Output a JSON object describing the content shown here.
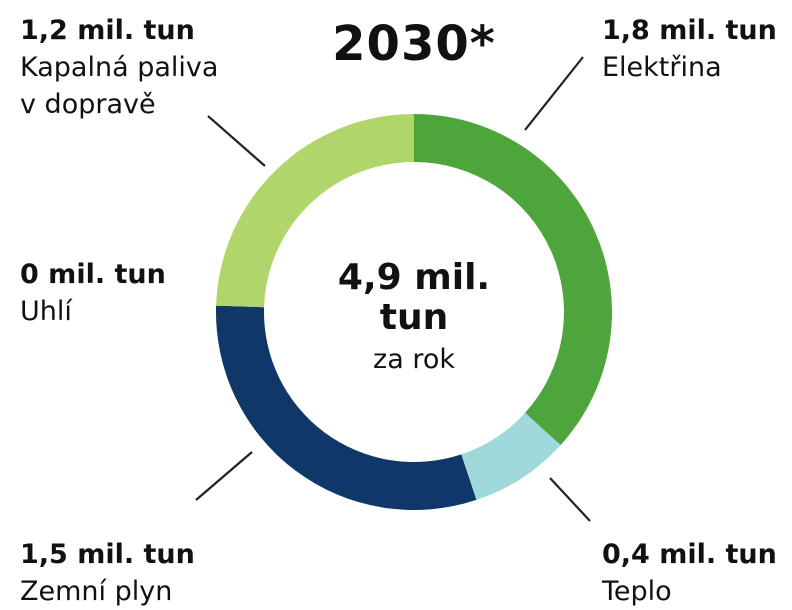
{
  "chart_data": {
    "type": "pie",
    "title": "2030*",
    "center": {
      "total": "4,9 mil. tun",
      "unit_note": "za rok"
    },
    "unit": "mil. tun",
    "slices": [
      {
        "label": "Elektřina",
        "value_text": "1,8 mil. tun",
        "value": 1.8,
        "color": "#4ea53c"
      },
      {
        "label": "Teplo",
        "value_text": "0,4 mil. tun",
        "value": 0.4,
        "color": "#9fd9dc"
      },
      {
        "label": "Zemní plyn",
        "value_text": "1,5 mil. tun",
        "value": 1.5,
        "color": "#0f3868"
      },
      {
        "label": "Uhlí",
        "value_text": "0 mil. tun",
        "value": 0,
        "color": "#0f3868"
      },
      {
        "label": "Kapalná paliva\nv dopravě",
        "value_text": "1,2 mil. tun",
        "value": 1.2,
        "color": "#b0d66b"
      }
    ]
  }
}
